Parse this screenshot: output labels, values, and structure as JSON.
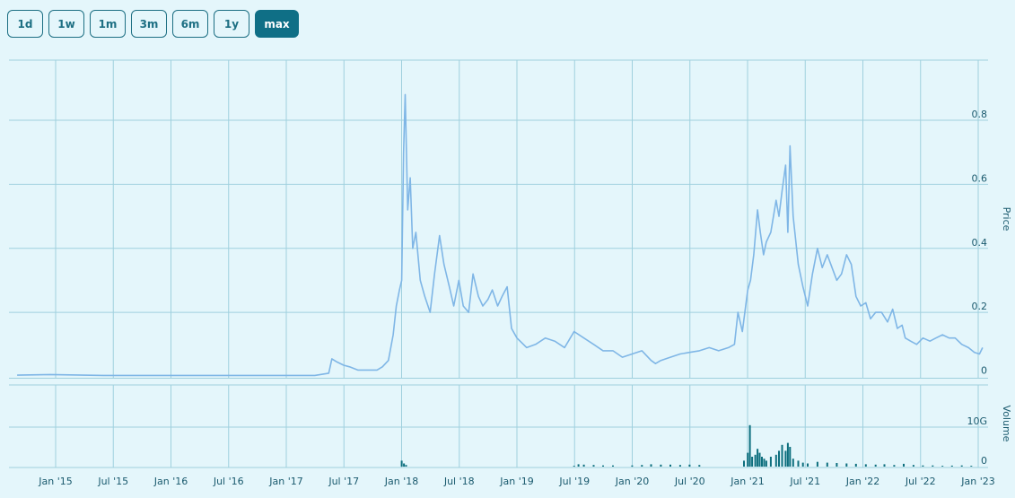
{
  "range_buttons": [
    {
      "label": "1d",
      "active": false
    },
    {
      "label": "1w",
      "active": false
    },
    {
      "label": "1m",
      "active": false
    },
    {
      "label": "3m",
      "active": false
    },
    {
      "label": "6m",
      "active": false
    },
    {
      "label": "1y",
      "active": false
    },
    {
      "label": "max",
      "active": true
    }
  ],
  "colors": {
    "background": "#e4f6fb",
    "grid": "#9fd0de",
    "price_line": "#7fb6e6",
    "volume_bars": "#0d6f7e",
    "button_active": "#0f6f86",
    "button_border": "#1d6f83"
  },
  "chart_data": [
    {
      "type": "line",
      "ylabel": "Price",
      "ylim": [
        0,
        0.88
      ],
      "y_ticks": [
        0,
        0.2,
        0.4,
        0.6,
        0.8
      ],
      "y_tick_labels": [
        "0",
        "0.2",
        "0.4",
        "0.6",
        "0.8"
      ],
      "x_tick_labels": [
        "Jan '15",
        "Jul '15",
        "Jan '16",
        "Jul '16",
        "Jan '17",
        "Jul '17",
        "Jan '18",
        "Jul '18",
        "Jan '19",
        "Jul '19",
        "Jan '20",
        "Jul '20",
        "Jan '21",
        "Jul '21",
        "Jan '22",
        "Jul '22",
        "Jan '23"
      ],
      "grid": true,
      "series": [
        {
          "x": [
            "2014-09-01",
            "2014-12-15",
            "2015-06-01",
            "2016-01-01",
            "2016-06-01",
            "2017-01-01",
            "2017-04-01",
            "2017-05-15",
            "2017-05-25",
            "2017-06-10",
            "2017-07-01",
            "2017-07-20",
            "2017-08-15",
            "2017-09-15",
            "2017-10-15",
            "2017-11-01",
            "2017-11-20",
            "2017-12-05",
            "2017-12-15",
            "2017-12-25",
            "2018-01-01",
            "2018-01-07",
            "2018-01-12",
            "2018-01-20",
            "2018-01-28",
            "2018-02-05",
            "2018-02-15",
            "2018-03-01",
            "2018-03-15",
            "2018-04-01",
            "2018-04-15",
            "2018-05-01",
            "2018-05-15",
            "2018-06-01",
            "2018-06-15",
            "2018-07-01",
            "2018-07-15",
            "2018-08-01",
            "2018-08-15",
            "2018-09-01",
            "2018-09-15",
            "2018-10-01",
            "2018-10-15",
            "2018-11-01",
            "2018-11-15",
            "2018-12-01",
            "2018-12-15",
            "2019-01-01",
            "2019-02-01",
            "2019-03-01",
            "2019-04-01",
            "2019-05-01",
            "2019-06-01",
            "2019-07-01",
            "2019-08-01",
            "2019-09-01",
            "2019-10-01",
            "2019-11-01",
            "2019-12-01",
            "2020-01-01",
            "2020-02-01",
            "2020-03-01",
            "2020-03-15",
            "2020-04-01",
            "2020-05-01",
            "2020-06-01",
            "2020-07-01",
            "2020-08-01",
            "2020-09-01",
            "2020-10-01",
            "2020-11-01",
            "2020-11-20",
            "2020-12-01",
            "2020-12-15",
            "2021-01-01",
            "2021-01-10",
            "2021-01-20",
            "2021-02-01",
            "2021-02-10",
            "2021-02-20",
            "2021-03-01",
            "2021-03-15",
            "2021-04-01",
            "2021-04-10",
            "2021-04-20",
            "2021-05-01",
            "2021-05-08",
            "2021-05-15",
            "2021-05-25",
            "2021-06-10",
            "2021-06-25",
            "2021-07-10",
            "2021-07-25",
            "2021-08-10",
            "2021-08-25",
            "2021-09-10",
            "2021-09-25",
            "2021-10-10",
            "2021-10-25",
            "2021-11-10",
            "2021-11-25",
            "2021-12-10",
            "2021-12-25",
            "2022-01-10",
            "2022-01-25",
            "2022-02-10",
            "2022-03-01",
            "2022-03-20",
            "2022-04-05",
            "2022-04-20",
            "2022-05-05",
            "2022-05-15",
            "2022-06-01",
            "2022-06-20",
            "2022-07-10",
            "2022-08-01",
            "2022-08-20",
            "2022-09-10",
            "2022-10-01",
            "2022-10-20",
            "2022-11-10",
            "2022-12-01",
            "2022-12-20",
            "2023-01-05",
            "2023-01-15"
          ],
          "y": [
            0.004,
            0.006,
            0.003,
            0.003,
            0.003,
            0.003,
            0.003,
            0.01,
            0.055,
            0.045,
            0.035,
            0.03,
            0.02,
            0.02,
            0.02,
            0.03,
            0.05,
            0.13,
            0.22,
            0.27,
            0.3,
            0.7,
            0.88,
            0.52,
            0.62,
            0.4,
            0.45,
            0.3,
            0.25,
            0.2,
            0.32,
            0.44,
            0.35,
            0.28,
            0.22,
            0.3,
            0.22,
            0.2,
            0.32,
            0.25,
            0.22,
            0.24,
            0.27,
            0.22,
            0.25,
            0.28,
            0.15,
            0.12,
            0.09,
            0.1,
            0.12,
            0.11,
            0.09,
            0.14,
            0.12,
            0.1,
            0.08,
            0.08,
            0.06,
            0.07,
            0.08,
            0.05,
            0.04,
            0.05,
            0.06,
            0.07,
            0.075,
            0.08,
            0.09,
            0.08,
            0.09,
            0.1,
            0.2,
            0.14,
            0.27,
            0.3,
            0.38,
            0.52,
            0.45,
            0.38,
            0.42,
            0.45,
            0.55,
            0.5,
            0.58,
            0.66,
            0.45,
            0.72,
            0.5,
            0.35,
            0.28,
            0.22,
            0.32,
            0.4,
            0.34,
            0.38,
            0.34,
            0.3,
            0.32,
            0.38,
            0.35,
            0.25,
            0.22,
            0.23,
            0.18,
            0.2,
            0.2,
            0.17,
            0.21,
            0.15,
            0.16,
            0.12,
            0.11,
            0.1,
            0.12,
            0.11,
            0.12,
            0.13,
            0.12,
            0.12,
            0.1,
            0.09,
            0.075,
            0.07,
            0.09
          ]
        }
      ]
    },
    {
      "type": "bar",
      "ylabel": "Volume",
      "y_ticks": [
        0,
        10000000000
      ],
      "y_tick_labels": [
        "0",
        "10G"
      ],
      "ylim": [
        0,
        13000000000
      ],
      "grid": true,
      "x": [
        "2018-01-01",
        "2018-01-08",
        "2018-01-15",
        "2019-07-01",
        "2019-07-15",
        "2019-08-01",
        "2019-09-01",
        "2019-10-01",
        "2019-11-01",
        "2020-01-01",
        "2020-02-01",
        "2020-03-01",
        "2020-04-01",
        "2020-05-01",
        "2020-06-01",
        "2020-07-01",
        "2020-08-01",
        "2020-12-20",
        "2021-01-01",
        "2021-01-08",
        "2021-01-15",
        "2021-01-25",
        "2021-02-01",
        "2021-02-08",
        "2021-02-15",
        "2021-02-22",
        "2021-03-01",
        "2021-03-15",
        "2021-04-01",
        "2021-04-10",
        "2021-04-20",
        "2021-05-01",
        "2021-05-08",
        "2021-05-15",
        "2021-05-25",
        "2021-06-10",
        "2021-06-25",
        "2021-07-10",
        "2021-08-10",
        "2021-09-10",
        "2021-10-10",
        "2021-11-10",
        "2021-12-10",
        "2022-01-10",
        "2022-02-10",
        "2022-03-10",
        "2022-04-10",
        "2022-05-10",
        "2022-06-10",
        "2022-07-10",
        "2022-08-10",
        "2022-09-10",
        "2022-10-10",
        "2022-11-10",
        "2022-12-10"
      ],
      "values": [
        1500000000,
        800000000,
        400000000,
        200000000,
        600000000,
        500000000,
        400000000,
        300000000,
        300000000,
        300000000,
        400000000,
        600000000,
        500000000,
        500000000,
        400000000,
        500000000,
        400000000,
        1500000000,
        3500000000,
        10500000000,
        2500000000,
        3000000000,
        4500000000,
        3500000000,
        2500000000,
        2000000000,
        1500000000,
        2500000000,
        3000000000,
        4000000000,
        5500000000,
        4000000000,
        6000000000,
        5000000000,
        2000000000,
        1500000000,
        1000000000,
        800000000,
        1200000000,
        1000000000,
        900000000,
        800000000,
        700000000,
        600000000,
        500000000,
        600000000,
        400000000,
        700000000,
        400000000,
        300000000,
        300000000,
        200000000,
        250000000,
        300000000,
        200000000
      ]
    }
  ]
}
